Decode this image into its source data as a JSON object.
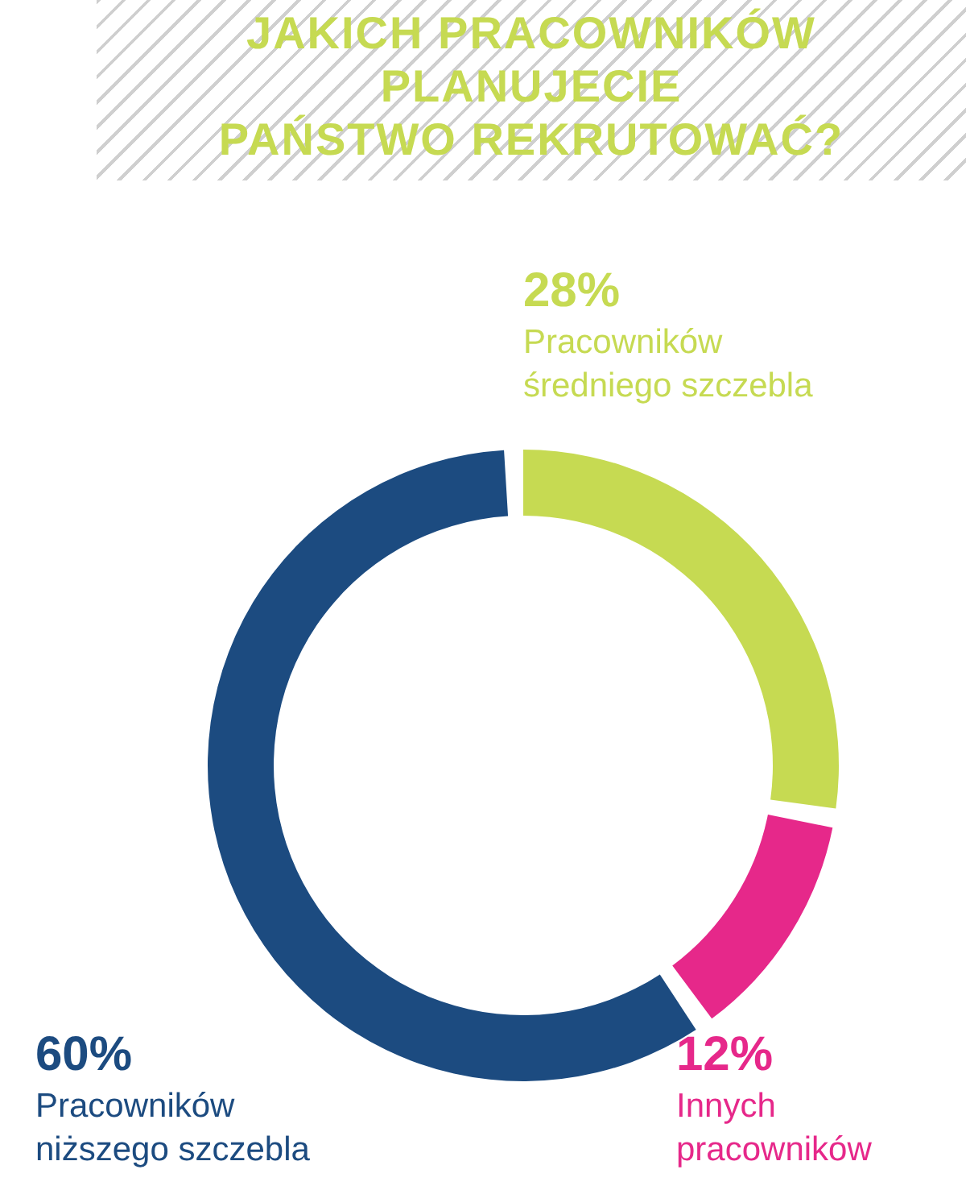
{
  "chart_data": {
    "type": "donut",
    "title": "JAKICH PRACOWNIKÓW\nPLANUJECIE\nPAŃSTWO REKRUTOWAĆ?",
    "categories": [
      "Pracowników średniego szczebla",
      "Innych pracowników",
      "Pracowników niższego szczebla"
    ],
    "values": [
      28,
      12,
      60
    ],
    "colors": [
      "#c6da52",
      "#e6288a",
      "#1c4b80"
    ],
    "value_labels": [
      "28%",
      "12%",
      "60%"
    ]
  }
}
